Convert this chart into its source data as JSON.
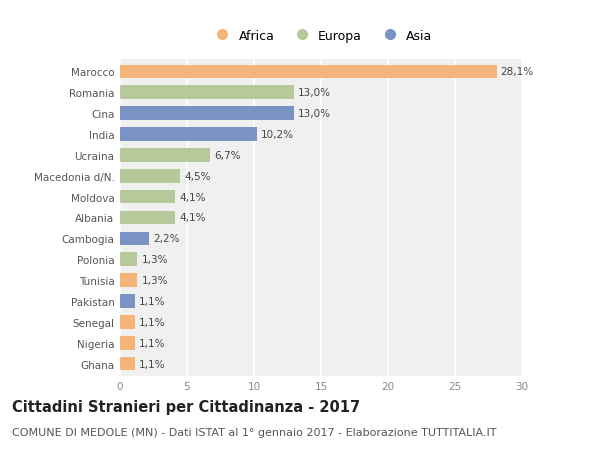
{
  "countries": [
    "Marocco",
    "Romania",
    "Cina",
    "India",
    "Ucraina",
    "Macedonia d/N.",
    "Moldova",
    "Albania",
    "Cambogia",
    "Polonia",
    "Tunisia",
    "Pakistan",
    "Senegal",
    "Nigeria",
    "Ghana"
  ],
  "values": [
    28.1,
    13.0,
    13.0,
    10.2,
    6.7,
    4.5,
    4.1,
    4.1,
    2.2,
    1.3,
    1.3,
    1.1,
    1.1,
    1.1,
    1.1
  ],
  "labels": [
    "28,1%",
    "13,0%",
    "13,0%",
    "10,2%",
    "6,7%",
    "4,5%",
    "4,1%",
    "4,1%",
    "2,2%",
    "1,3%",
    "1,3%",
    "1,1%",
    "1,1%",
    "1,1%",
    "1,1%"
  ],
  "colors": [
    "#f5b47a",
    "#b5c99a",
    "#7b93c4",
    "#7b93c4",
    "#b5c99a",
    "#b5c99a",
    "#b5c99a",
    "#b5c99a",
    "#7b93c4",
    "#b5c99a",
    "#f5b47a",
    "#7b93c4",
    "#f5b47a",
    "#f5b47a",
    "#f5b47a"
  ],
  "legend_labels": [
    "Africa",
    "Europa",
    "Asia"
  ],
  "legend_colors": [
    "#f5b47a",
    "#b5c99a",
    "#7b93c4"
  ],
  "xlim": [
    0,
    30
  ],
  "xticks": [
    0,
    5,
    10,
    15,
    20,
    25,
    30
  ],
  "title": "Cittadini Stranieri per Cittadinanza - 2017",
  "subtitle": "COMUNE DI MEDOLE (MN) - Dati ISTAT al 1° gennaio 2017 - Elaborazione TUTTITALIA.IT",
  "bg_color": "#ffffff",
  "plot_bg_color": "#f0f0f0",
  "grid_color": "#ffffff",
  "bar_height": 0.65,
  "title_fontsize": 10.5,
  "subtitle_fontsize": 8,
  "label_fontsize": 7.5,
  "tick_fontsize": 7.5,
  "legend_fontsize": 9
}
